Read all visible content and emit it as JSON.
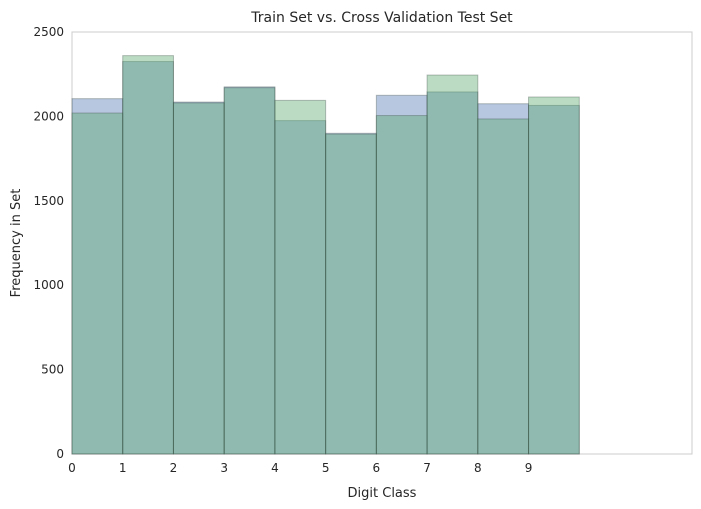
{
  "chart_data": {
    "type": "bar",
    "title": "Train Set vs. Cross Validation Test Set",
    "xlabel": "Digit Class",
    "ylabel": "Frequency in Set",
    "xlim": [
      0,
      11
    ],
    "ylim": [
      0,
      2500
    ],
    "x_ticks": [
      "0",
      "1",
      "2",
      "3",
      "4",
      "5",
      "6",
      "7",
      "8",
      "9"
    ],
    "y_ticks": [
      "0",
      "500",
      "1000",
      "1500",
      "2000",
      "2500"
    ],
    "bin_width": 0.9,
    "categories": [
      "0",
      "1",
      "2",
      "3",
      "4",
      "5",
      "6",
      "7",
      "8",
      "9"
    ],
    "series": [
      {
        "color": "#4C72B0",
        "values": [
          2105,
          2325,
          2085,
          2175,
          1975,
          1900,
          2125,
          2145,
          2075,
          2065
        ]
      },
      {
        "color": "#55A868",
        "values": [
          2020,
          2360,
          2080,
          2170,
          2095,
          1895,
          2005,
          2245,
          1985,
          2115
        ]
      }
    ],
    "grid": false,
    "legend": "none"
  }
}
